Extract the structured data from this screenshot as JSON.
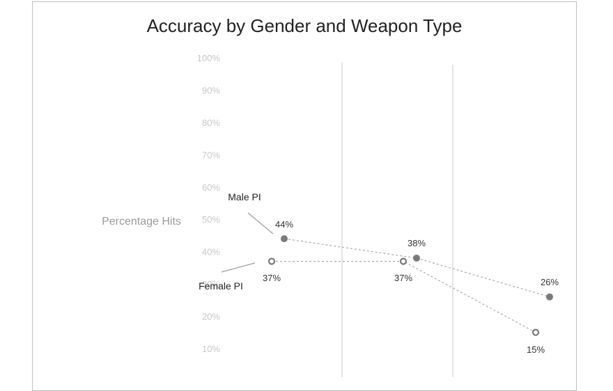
{
  "chart_data": {
    "type": "line",
    "title": "Accuracy by Gender and Weapon Type",
    "ylabel": "Percentage Hits",
    "ylim": [
      0,
      100
    ],
    "yticks": [
      "10%",
      "20%",
      "30%",
      "40%",
      "50%",
      "60%",
      "70%",
      "80%",
      "90%",
      "100%"
    ],
    "series": [
      {
        "name": "Male PI",
        "values": [
          44,
          38,
          26
        ],
        "labels": [
          "44%",
          "38%",
          "26%"
        ],
        "color": "#7a7a7a",
        "marker": "filled"
      },
      {
        "name": "Female PI",
        "values": [
          37,
          37,
          15
        ],
        "labels": [
          "37%",
          "37%",
          "15%"
        ],
        "color": "#7a7a7a",
        "marker": "hollow"
      }
    ]
  }
}
